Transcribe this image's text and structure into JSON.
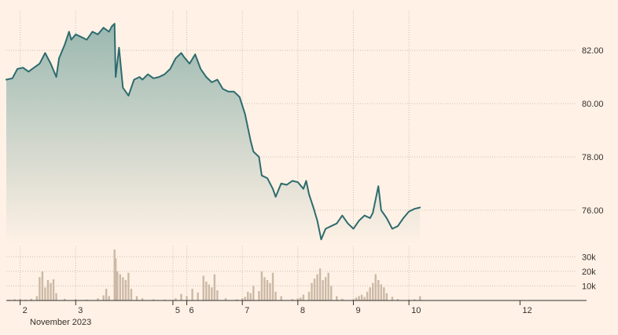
{
  "chart_data": {
    "type": "line",
    "price_panel": {
      "ylim": [
        74.7,
        83.3
      ],
      "yticks": [
        {
          "value": 76,
          "label": "76.00"
        },
        {
          "value": 78,
          "label": "78.00"
        },
        {
          "value": 80,
          "label": "80.00"
        },
        {
          "value": 82,
          "label": "82.00"
        }
      ],
      "line_color": "#2e6b6e",
      "area_top_color": "#9ab8b0",
      "area_bottom_color": "#fff1e5"
    },
    "volume_panel": {
      "ylim": [
        0,
        35000
      ],
      "yticks": [
        {
          "value": 10000,
          "label": "10k"
        },
        {
          "value": 20000,
          "label": "20k"
        },
        {
          "value": 30000,
          "label": "30k"
        }
      ],
      "bar_color": "#cbb9a6"
    },
    "xlim": [
      1.75,
      12.0
    ],
    "xticks": [
      {
        "value": 2,
        "label": "2"
      },
      {
        "value": 3,
        "label": "3"
      },
      {
        "value": 4.75,
        "label": "5"
      },
      {
        "value": 5,
        "label": "6"
      },
      {
        "value": 6,
        "label": "7"
      },
      {
        "value": 7,
        "label": "8"
      },
      {
        "value": 8,
        "label": "9"
      },
      {
        "value": 9,
        "label": "10"
      },
      {
        "value": 11,
        "label": "12"
      }
    ],
    "vgrid": [
      2,
      3,
      4.75,
      5,
      6,
      7,
      8,
      9
    ],
    "month_label": "November 2023",
    "price_series": [
      [
        1.75,
        80.9
      ],
      [
        1.86,
        80.95
      ],
      [
        1.95,
        81.3
      ],
      [
        2.05,
        81.35
      ],
      [
        2.15,
        81.2
      ],
      [
        2.25,
        81.35
      ],
      [
        2.35,
        81.5
      ],
      [
        2.45,
        81.9
      ],
      [
        2.55,
        81.5
      ],
      [
        2.65,
        81.0
      ],
      [
        2.7,
        81.7
      ],
      [
        2.8,
        82.2
      ],
      [
        2.88,
        82.7
      ],
      [
        2.92,
        82.4
      ],
      [
        3.0,
        82.6
      ],
      [
        3.1,
        82.5
      ],
      [
        3.2,
        82.4
      ],
      [
        3.3,
        82.7
      ],
      [
        3.4,
        82.6
      ],
      [
        3.5,
        82.85
      ],
      [
        3.6,
        82.7
      ],
      [
        3.65,
        82.9
      ],
      [
        3.7,
        83.0
      ],
      [
        3.72,
        81.0
      ],
      [
        3.78,
        82.1
      ],
      [
        3.85,
        80.6
      ],
      [
        3.95,
        80.3
      ],
      [
        4.05,
        80.9
      ],
      [
        4.15,
        81.0
      ],
      [
        4.2,
        80.9
      ],
      [
        4.3,
        81.1
      ],
      [
        4.4,
        80.95
      ],
      [
        4.5,
        81.0
      ],
      [
        4.6,
        81.1
      ],
      [
        4.7,
        81.3
      ],
      [
        4.8,
        81.7
      ],
      [
        4.9,
        81.9
      ],
      [
        4.95,
        81.75
      ],
      [
        5.05,
        81.5
      ],
      [
        5.15,
        81.85
      ],
      [
        5.25,
        81.3
      ],
      [
        5.35,
        81.0
      ],
      [
        5.45,
        80.8
      ],
      [
        5.55,
        80.9
      ],
      [
        5.65,
        80.55
      ],
      [
        5.75,
        80.45
      ],
      [
        5.85,
        80.45
      ],
      [
        5.95,
        80.25
      ],
      [
        6.05,
        79.6
      ],
      [
        6.15,
        78.6
      ],
      [
        6.2,
        78.2
      ],
      [
        6.3,
        78.0
      ],
      [
        6.35,
        77.3
      ],
      [
        6.45,
        77.2
      ],
      [
        6.55,
        76.8
      ],
      [
        6.6,
        76.5
      ],
      [
        6.7,
        77.0
      ],
      [
        6.8,
        76.95
      ],
      [
        6.9,
        77.1
      ],
      [
        7.0,
        77.05
      ],
      [
        7.1,
        76.8
      ],
      [
        7.15,
        77.1
      ],
      [
        7.2,
        76.6
      ],
      [
        7.28,
        76.1
      ],
      [
        7.35,
        75.6
      ],
      [
        7.42,
        74.9
      ],
      [
        7.5,
        75.3
      ],
      [
        7.6,
        75.4
      ],
      [
        7.7,
        75.5
      ],
      [
        7.8,
        75.8
      ],
      [
        7.9,
        75.5
      ],
      [
        8.0,
        75.3
      ],
      [
        8.1,
        75.6
      ],
      [
        8.2,
        75.8
      ],
      [
        8.3,
        75.7
      ],
      [
        8.35,
        75.9
      ],
      [
        8.4,
        76.4
      ],
      [
        8.45,
        76.9
      ],
      [
        8.5,
        76.0
      ],
      [
        8.6,
        75.7
      ],
      [
        8.7,
        75.3
      ],
      [
        8.8,
        75.4
      ],
      [
        8.9,
        75.7
      ],
      [
        9.0,
        75.95
      ],
      [
        9.1,
        76.05
      ],
      [
        9.2,
        76.1
      ]
    ],
    "volume_series": [
      [
        1.8,
        500
      ],
      [
        1.9,
        800
      ],
      [
        2.0,
        1000
      ],
      [
        2.1,
        600
      ],
      [
        2.2,
        1200
      ],
      [
        2.3,
        3000
      ],
      [
        2.35,
        16000
      ],
      [
        2.4,
        20000
      ],
      [
        2.45,
        9000
      ],
      [
        2.5,
        14000
      ],
      [
        2.55,
        12000
      ],
      [
        2.6,
        14500
      ],
      [
        2.65,
        5000
      ],
      [
        2.8,
        1200
      ],
      [
        3.0,
        800
      ],
      [
        3.2,
        600
      ],
      [
        3.4,
        1500
      ],
      [
        3.5,
        3500
      ],
      [
        3.55,
        8000
      ],
      [
        3.6,
        3000
      ],
      [
        3.7,
        35000
      ],
      [
        3.72,
        29000
      ],
      [
        3.75,
        20000
      ],
      [
        3.8,
        18000
      ],
      [
        3.85,
        16000
      ],
      [
        3.9,
        14000
      ],
      [
        3.95,
        19000
      ],
      [
        4.0,
        8000
      ],
      [
        4.1,
        3000
      ],
      [
        4.2,
        1500
      ],
      [
        4.4,
        800
      ],
      [
        4.6,
        600
      ],
      [
        4.8,
        1500
      ],
      [
        4.9,
        4500
      ],
      [
        5.0,
        3000
      ],
      [
        5.1,
        8000
      ],
      [
        5.2,
        5500
      ],
      [
        5.3,
        17000
      ],
      [
        5.35,
        13000
      ],
      [
        5.4,
        11000
      ],
      [
        5.45,
        9000
      ],
      [
        5.5,
        18000
      ],
      [
        5.55,
        7000
      ],
      [
        5.7,
        1500
      ],
      [
        5.9,
        800
      ],
      [
        6.0,
        1500
      ],
      [
        6.05,
        2500
      ],
      [
        6.1,
        6000
      ],
      [
        6.15,
        5000
      ],
      [
        6.2,
        10000
      ],
      [
        6.3,
        6500
      ],
      [
        6.35,
        20000
      ],
      [
        6.4,
        16000
      ],
      [
        6.45,
        14000
      ],
      [
        6.5,
        12000
      ],
      [
        6.55,
        19000
      ],
      [
        6.6,
        6000
      ],
      [
        6.7,
        3000
      ],
      [
        6.9,
        1000
      ],
      [
        7.0,
        1500
      ],
      [
        7.05,
        2000
      ],
      [
        7.1,
        4000
      ],
      [
        7.2,
        6000
      ],
      [
        7.25,
        12000
      ],
      [
        7.3,
        15000
      ],
      [
        7.35,
        18000
      ],
      [
        7.4,
        22000
      ],
      [
        7.45,
        14000
      ],
      [
        7.5,
        16000
      ],
      [
        7.55,
        19000
      ],
      [
        7.6,
        10000
      ],
      [
        7.7,
        3000
      ],
      [
        7.8,
        1200
      ],
      [
        8.0,
        800
      ],
      [
        8.05,
        2000
      ],
      [
        8.1,
        3000
      ],
      [
        8.15,
        4000
      ],
      [
        8.2,
        2500
      ],
      [
        8.25,
        6000
      ],
      [
        8.3,
        9000
      ],
      [
        8.35,
        12000
      ],
      [
        8.4,
        18000
      ],
      [
        8.45,
        14000
      ],
      [
        8.5,
        11000
      ],
      [
        8.55,
        9000
      ],
      [
        8.6,
        5000
      ],
      [
        8.7,
        2500
      ],
      [
        8.8,
        1000
      ],
      [
        9.0,
        600
      ],
      [
        9.1,
        800
      ],
      [
        9.2,
        3000
      ]
    ]
  }
}
